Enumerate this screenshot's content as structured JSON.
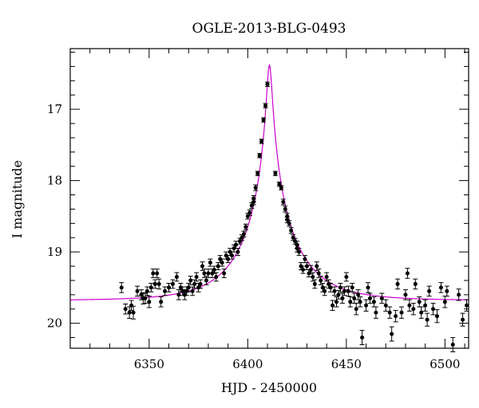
{
  "chart_data": {
    "type": "scatter",
    "title": "OGLE-2013-BLG-0493",
    "xlabel": "HJD - 2450000",
    "ylabel": "I magnitude",
    "xlim": [
      6310,
      6512
    ],
    "ylim": [
      20.35,
      16.15
    ],
    "y_inverted": true,
    "grid": false,
    "xticks": [
      "6350",
      "6400",
      "6450",
      "6500"
    ],
    "yticks": [
      "17",
      "18",
      "19",
      "20"
    ],
    "colors": {
      "points": "#000000",
      "model": "#cc00cc",
      "axes": "#000000"
    },
    "model": {
      "name": "",
      "description_visible": "magenta model light curve",
      "peak_t": 6411,
      "peak_mag": 16.38,
      "baseline_mag": 19.68,
      "t_start": 6310,
      "t_end": 6512
    },
    "series": [
      {
        "values": [
          [
            6336,
            19.5,
            0.07
          ],
          [
            6338,
            19.8,
            0.07
          ],
          [
            6340,
            19.85,
            0.08
          ],
          [
            6341,
            19.75,
            0.07
          ],
          [
            6342,
            19.85,
            0.09
          ],
          [
            6344,
            19.55,
            0.07
          ],
          [
            6346,
            19.6,
            0.07
          ],
          [
            6347,
            19.65,
            0.08
          ],
          [
            6348,
            19.65,
            0.07
          ],
          [
            6349,
            19.55,
            0.06
          ],
          [
            6350,
            19.7,
            0.08
          ],
          [
            6351,
            19.5,
            0.06
          ],
          [
            6352,
            19.3,
            0.06
          ],
          [
            6353,
            19.45,
            0.06
          ],
          [
            6354,
            19.3,
            0.06
          ],
          [
            6355,
            19.45,
            0.07
          ],
          [
            6356,
            19.7,
            0.07
          ],
          [
            6358,
            19.55,
            0.06
          ],
          [
            6360,
            19.5,
            0.06
          ],
          [
            6362,
            19.45,
            0.06
          ],
          [
            6364,
            19.35,
            0.06
          ],
          [
            6365,
            19.6,
            0.07
          ],
          [
            6366,
            19.5,
            0.06
          ],
          [
            6367,
            19.55,
            0.06
          ],
          [
            6368,
            19.6,
            0.07
          ],
          [
            6369,
            19.55,
            0.06
          ],
          [
            6370,
            19.5,
            0.06
          ],
          [
            6371,
            19.4,
            0.06
          ],
          [
            6372,
            19.55,
            0.06
          ],
          [
            6373,
            19.45,
            0.06
          ],
          [
            6374,
            19.35,
            0.06
          ],
          [
            6375,
            19.5,
            0.06
          ],
          [
            6376,
            19.45,
            0.06
          ],
          [
            6377,
            19.2,
            0.06
          ],
          [
            6378,
            19.3,
            0.06
          ],
          [
            6379,
            19.4,
            0.06
          ],
          [
            6380,
            19.3,
            0.06
          ],
          [
            6381,
            19.15,
            0.05
          ],
          [
            6382,
            19.3,
            0.06
          ],
          [
            6383,
            19.25,
            0.05
          ],
          [
            6384,
            19.35,
            0.06
          ],
          [
            6385,
            19.2,
            0.05
          ],
          [
            6386,
            19.1,
            0.05
          ],
          [
            6387,
            19.15,
            0.05
          ],
          [
            6388,
            19.3,
            0.06
          ],
          [
            6389,
            19.05,
            0.05
          ],
          [
            6390,
            19.1,
            0.05
          ],
          [
            6391,
            19.0,
            0.05
          ],
          [
            6392,
            19.05,
            0.05
          ],
          [
            6393,
            18.95,
            0.05
          ],
          [
            6394,
            18.9,
            0.05
          ],
          [
            6395,
            19.0,
            0.05
          ],
          [
            6396,
            18.85,
            0.04
          ],
          [
            6397,
            18.8,
            0.04
          ],
          [
            6398,
            18.75,
            0.04
          ],
          [
            6399,
            18.65,
            0.04
          ],
          [
            6400,
            18.5,
            0.04
          ],
          [
            6401,
            18.45,
            0.04
          ],
          [
            6402,
            18.35,
            0.04
          ],
          [
            6403,
            18.25,
            0.04
          ],
          [
            6404,
            18.1,
            0.04
          ],
          [
            6405,
            17.9,
            0.03
          ],
          [
            6406,
            17.65,
            0.03
          ],
          [
            6407,
            17.45,
            0.03
          ],
          [
            6408,
            17.15,
            0.03
          ],
          [
            6409,
            16.95,
            0.03
          ],
          [
            6410,
            16.65,
            0.03
          ],
          [
            6416,
            18.05,
            0.03
          ],
          [
            6417,
            18.1,
            0.03
          ],
          [
            6418,
            18.3,
            0.04
          ],
          [
            6419,
            18.4,
            0.04
          ],
          [
            6420,
            18.5,
            0.04
          ],
          [
            6421,
            18.6,
            0.04
          ],
          [
            6422,
            18.7,
            0.04
          ],
          [
            6423,
            18.8,
            0.04
          ],
          [
            6424,
            18.85,
            0.04
          ],
          [
            6425,
            18.9,
            0.05
          ],
          [
            6426,
            19.0,
            0.05
          ],
          [
            6427,
            19.2,
            0.05
          ],
          [
            6428,
            19.25,
            0.05
          ],
          [
            6429,
            19.1,
            0.05
          ],
          [
            6430,
            19.2,
            0.05
          ],
          [
            6431,
            19.3,
            0.05
          ],
          [
            6432,
            19.25,
            0.06
          ],
          [
            6433,
            19.35,
            0.06
          ],
          [
            6434,
            19.45,
            0.06
          ],
          [
            6435,
            19.2,
            0.06
          ],
          [
            6436,
            19.3,
            0.06
          ],
          [
            6437,
            19.4,
            0.06
          ],
          [
            6438,
            19.5,
            0.06
          ],
          [
            6439,
            19.55,
            0.06
          ],
          [
            6440,
            19.35,
            0.06
          ],
          [
            6441,
            19.45,
            0.06
          ],
          [
            6442,
            19.5,
            0.06
          ],
          [
            6443,
            19.75,
            0.07
          ],
          [
            6444,
            19.55,
            0.06
          ],
          [
            6445,
            19.7,
            0.07
          ],
          [
            6446,
            19.6,
            0.06
          ],
          [
            6447,
            19.5,
            0.06
          ],
          [
            6448,
            19.65,
            0.07
          ],
          [
            6449,
            19.55,
            0.06
          ],
          [
            6450,
            19.35,
            0.06
          ],
          [
            6451,
            19.55,
            0.07
          ],
          [
            6452,
            19.7,
            0.07
          ],
          [
            6453,
            19.5,
            0.06
          ],
          [
            6454,
            19.65,
            0.07
          ],
          [
            6455,
            19.8,
            0.08
          ],
          [
            6456,
            19.6,
            0.07
          ],
          [
            6457,
            19.7,
            0.07
          ],
          [
            6458,
            20.2,
            0.1
          ],
          [
            6460,
            19.75,
            0.08
          ],
          [
            6461,
            19.5,
            0.07
          ],
          [
            6462,
            19.65,
            0.07
          ],
          [
            6464,
            19.7,
            0.07
          ],
          [
            6465,
            19.85,
            0.08
          ],
          [
            6468,
            19.65,
            0.07
          ],
          [
            6470,
            19.75,
            0.08
          ],
          [
            6472,
            19.85,
            0.08
          ],
          [
            6473,
            20.15,
            0.1
          ],
          [
            6475,
            19.9,
            0.08
          ],
          [
            6476,
            19.45,
            0.07
          ],
          [
            6478,
            19.85,
            0.08
          ],
          [
            6480,
            19.6,
            0.07
          ],
          [
            6481,
            19.3,
            0.07
          ],
          [
            6482,
            19.75,
            0.08
          ],
          [
            6484,
            19.8,
            0.08
          ],
          [
            6485,
            19.45,
            0.07
          ],
          [
            6487,
            19.7,
            0.07
          ],
          [
            6488,
            19.85,
            0.08
          ],
          [
            6490,
            19.75,
            0.08
          ],
          [
            6491,
            19.95,
            0.09
          ],
          [
            6492,
            19.55,
            0.07
          ],
          [
            6494,
            19.8,
            0.08
          ],
          [
            6496,
            19.9,
            0.09
          ],
          [
            6498,
            19.5,
            0.07
          ],
          [
            6500,
            19.7,
            0.08
          ],
          [
            6501,
            19.55,
            0.07
          ],
          [
            6504,
            20.3,
            0.1
          ],
          [
            6507,
            19.6,
            0.08
          ],
          [
            6509,
            19.95,
            0.09
          ],
          [
            6511,
            19.75,
            0.08
          ],
          [
            6414,
            17.9,
            0.03
          ],
          [
            6420,
            18.55,
            0.04
          ],
          [
            6425,
            18.95,
            0.05
          ],
          [
            6403,
            18.3,
            0.04
          ]
        ]
      }
    ]
  }
}
